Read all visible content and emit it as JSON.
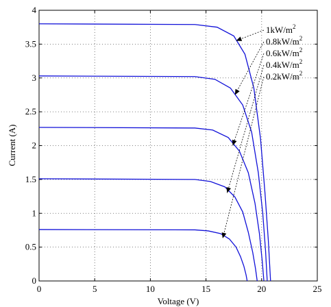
{
  "chart_data": {
    "type": "line",
    "title": "",
    "xlabel": "Voltage (V)",
    "ylabel": "Current (A)",
    "xlim": [
      0,
      25
    ],
    "ylim": [
      0,
      4
    ],
    "grid": true,
    "xticks": [
      0,
      5,
      10,
      15,
      20,
      25
    ],
    "yticks": [
      0,
      0.5,
      1,
      1.5,
      2,
      2.5,
      3,
      3.5,
      4
    ],
    "xtick_labels": [
      "0",
      "5",
      "10",
      "15",
      "20",
      "25"
    ],
    "ytick_labels": [
      "0",
      "0.5",
      "1",
      "1.5",
      "2",
      "2.5",
      "3",
      "3.5",
      "4"
    ],
    "series": [
      {
        "name": "1kW/m²",
        "color": "#1010d8",
        "isc": 3.8,
        "voc": 20.8,
        "x": [
          0,
          14.0,
          16.0,
          17.5,
          18.5,
          19.3,
          19.9,
          20.3,
          20.6,
          20.8
        ],
        "y": [
          3.8,
          3.79,
          3.75,
          3.62,
          3.35,
          2.85,
          2.1,
          1.3,
          0.6,
          0
        ]
      },
      {
        "name": "0.8kW/m²",
        "color": "#1010d8",
        "isc": 3.03,
        "voc": 20.5,
        "x": [
          0,
          14.0,
          15.8,
          17.2,
          18.3,
          19.1,
          19.7,
          20.1,
          20.35,
          20.5
        ],
        "y": [
          3.03,
          3.02,
          2.98,
          2.85,
          2.6,
          2.2,
          1.6,
          1.0,
          0.45,
          0
        ]
      },
      {
        "name": "0.6kW/m²",
        "color": "#1010d8",
        "isc": 2.27,
        "voc": 20.2,
        "x": [
          0,
          14.0,
          15.6,
          17.0,
          18.0,
          18.8,
          19.4,
          19.8,
          20.05,
          20.2
        ],
        "y": [
          2.27,
          2.26,
          2.23,
          2.12,
          1.92,
          1.6,
          1.15,
          0.7,
          0.3,
          0
        ]
      },
      {
        "name": "0.4kW/m²",
        "color": "#1010d8",
        "isc": 1.51,
        "voc": 19.6,
        "x": [
          0,
          14.0,
          15.4,
          16.7,
          17.6,
          18.3,
          18.8,
          19.2,
          19.45,
          19.6
        ],
        "y": [
          1.51,
          1.5,
          1.47,
          1.39,
          1.24,
          1.02,
          0.72,
          0.42,
          0.18,
          0
        ]
      },
      {
        "name": "0.2kW/m²",
        "color": "#1010d8",
        "isc": 0.76,
        "voc": 18.7,
        "x": [
          0,
          14.0,
          15.2,
          16.3,
          17.1,
          17.7,
          18.1,
          18.4,
          18.6,
          18.7
        ],
        "y": [
          0.76,
          0.755,
          0.74,
          0.7,
          0.62,
          0.5,
          0.36,
          0.22,
          0.09,
          0
        ]
      }
    ],
    "annotations": [
      {
        "text_base": "1kW/m",
        "sup": "2",
        "target_x": 17.7,
        "target_y": 3.55
      },
      {
        "text_base": "0.8kW/m",
        "sup": "2",
        "target_x": 17.6,
        "target_y": 2.75
      },
      {
        "text_base": "0.6kW/m",
        "sup": "2",
        "target_x": 17.4,
        "target_y": 2.0
      },
      {
        "text_base": "0.4kW/m",
        "sup": "2",
        "target_x": 16.9,
        "target_y": 1.3
      },
      {
        "text_base": "0.2kW/m",
        "sup": "2",
        "target_x": 16.5,
        "target_y": 0.63
      }
    ]
  }
}
